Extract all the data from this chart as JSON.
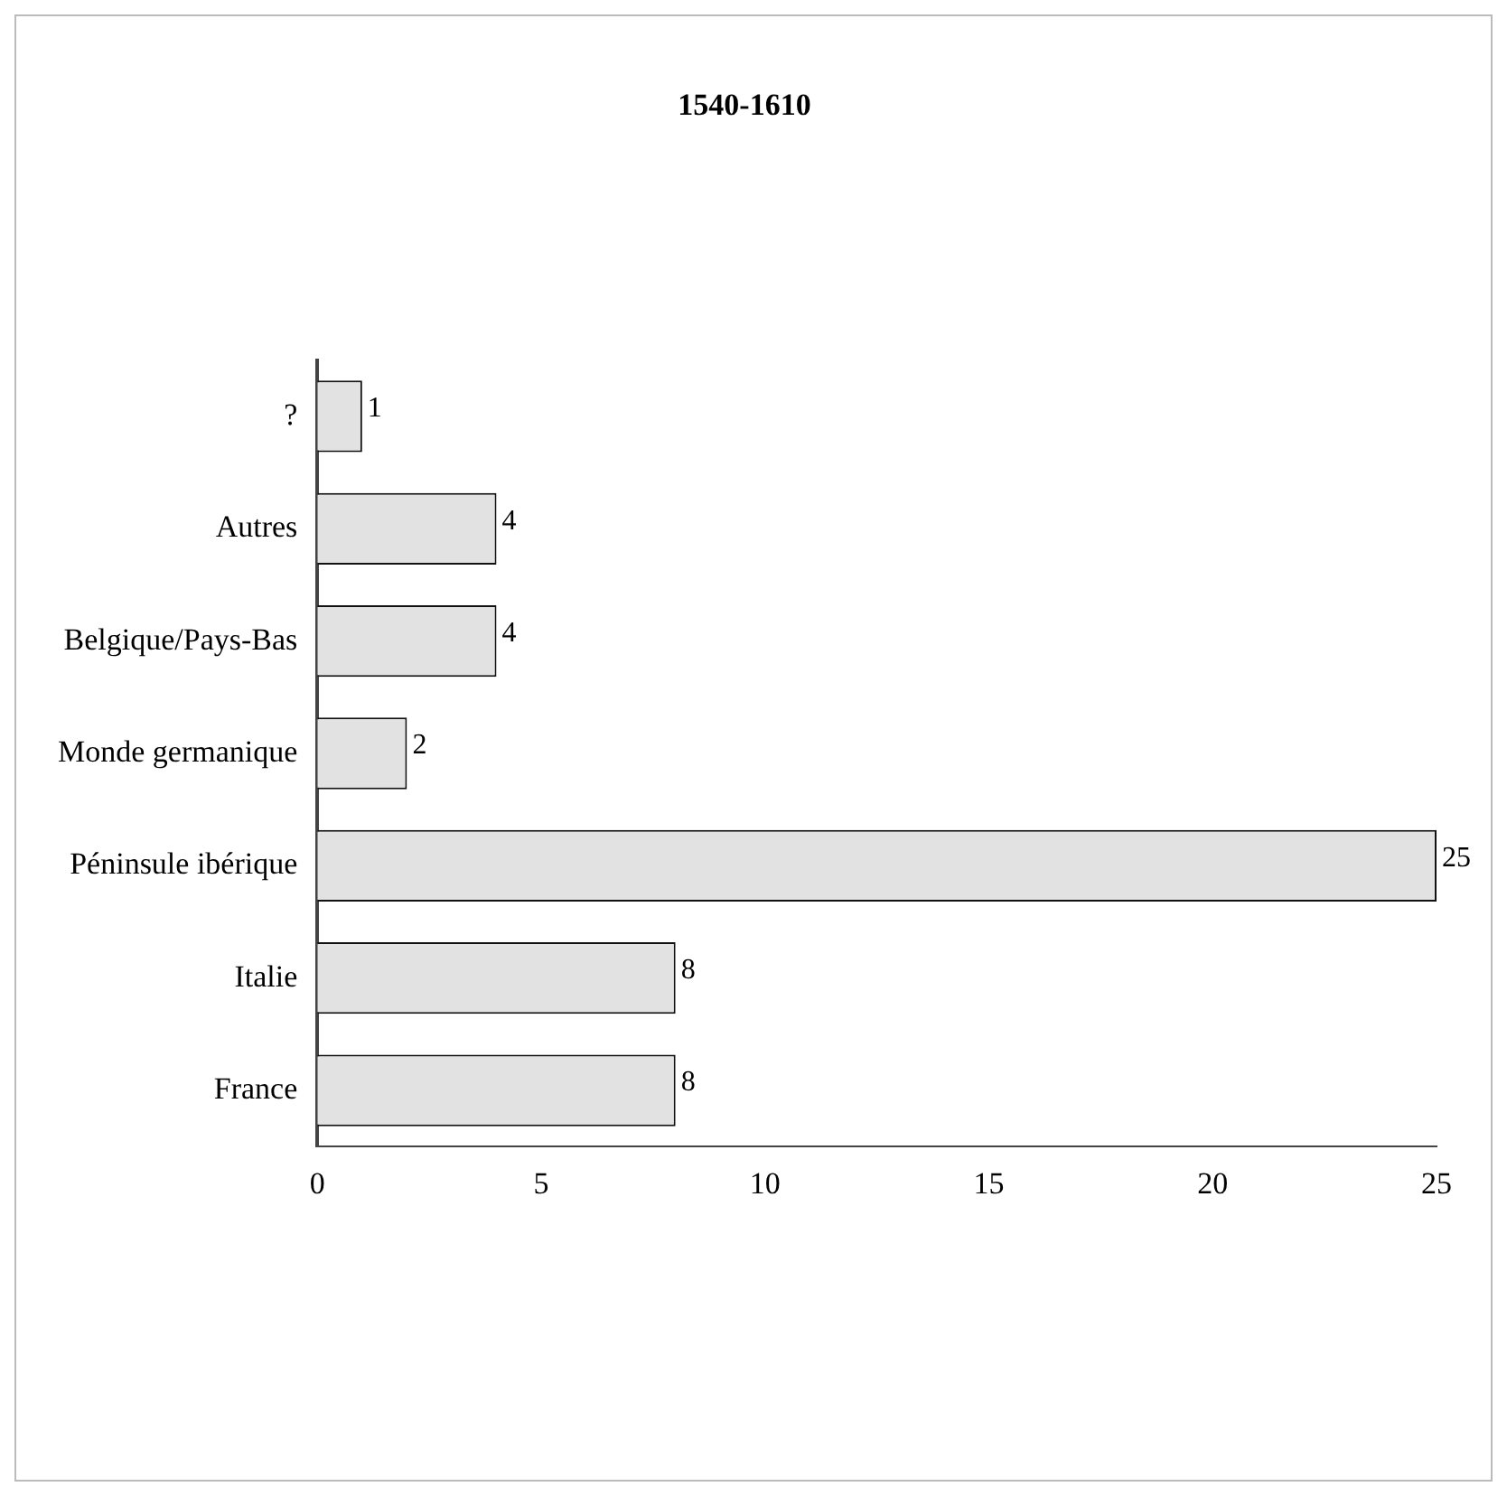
{
  "chart_data": {
    "type": "bar",
    "orientation": "horizontal",
    "title": "1540-1610",
    "categories": [
      "?",
      "Autres",
      "Belgique/Pays-Bas",
      "Monde germanique",
      "Péninsule ibérique",
      "Italie",
      "France"
    ],
    "values": [
      1,
      4,
      4,
      2,
      25,
      8,
      8
    ],
    "color": "#e2e2e2",
    "xlim": [
      0,
      25
    ],
    "xticks": [
      0,
      5,
      10,
      15,
      20,
      25
    ],
    "data_labels": true,
    "grid": false,
    "legend": false
  }
}
